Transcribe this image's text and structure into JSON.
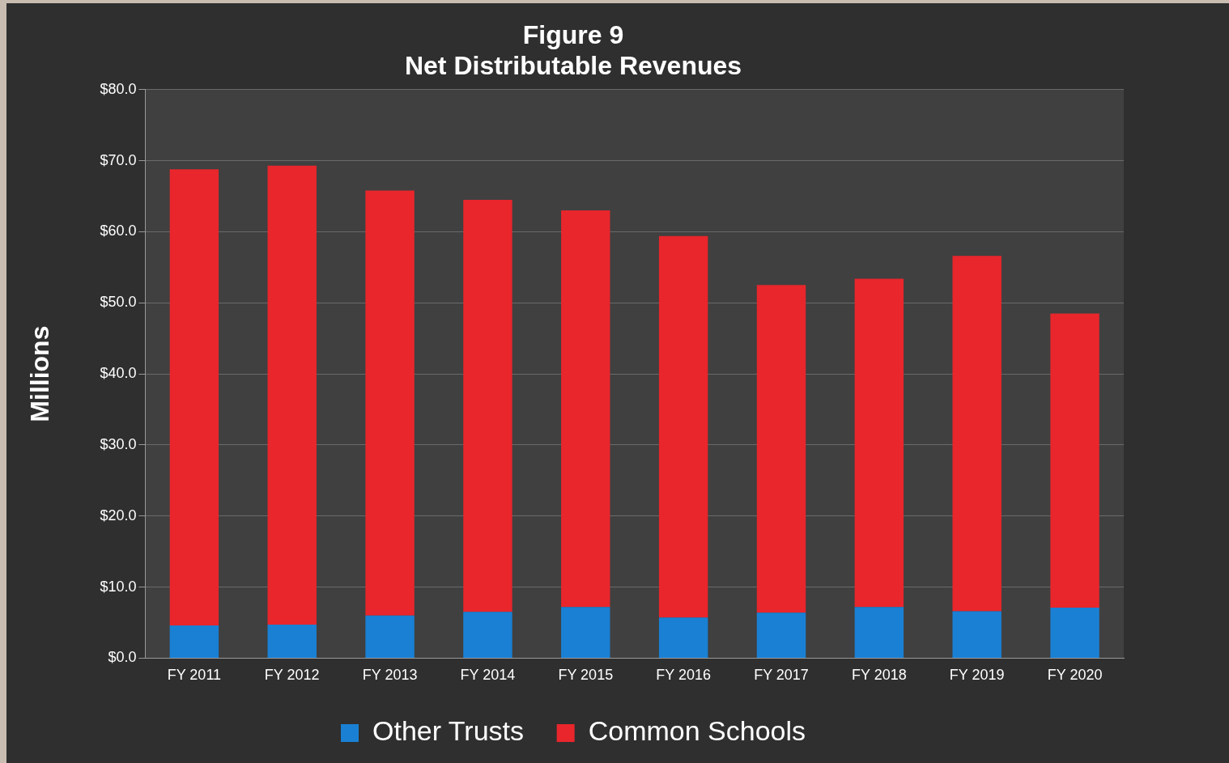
{
  "chart_data": {
    "type": "bar",
    "title": "Figure 9",
    "subtitle": "Net Distributable Revenues",
    "ylabel": "Millions",
    "categories": [
      "FY 2011",
      "FY 2012",
      "FY 2013",
      "FY 2014",
      "FY 2015",
      "FY 2016",
      "FY 2017",
      "FY 2018",
      "FY 2019",
      "FY 2020"
    ],
    "series": [
      {
        "name": "Other Trusts",
        "color": "#1a80d4",
        "values": [
          4.6,
          4.7,
          6.0,
          6.5,
          7.2,
          5.7,
          6.4,
          7.2,
          6.6,
          7.1
        ]
      },
      {
        "name": "Common Schools",
        "color": "#e8262c",
        "values": [
          64.2,
          64.6,
          59.8,
          58.0,
          55.8,
          53.7,
          46.1,
          46.2,
          50.0,
          41.4
        ]
      }
    ],
    "stacked": true,
    "ylim": [
      0,
      80
    ],
    "yticks": [
      {
        "value": 0,
        "label": "$0.0"
      },
      {
        "value": 10,
        "label": "$10.0"
      },
      {
        "value": 20,
        "label": "$20.0"
      },
      {
        "value": 30,
        "label": "$30.0"
      },
      {
        "value": 40,
        "label": "$40.0"
      },
      {
        "value": 50,
        "label": "$50.0"
      },
      {
        "value": 60,
        "label": "$60.0"
      },
      {
        "value": 70,
        "label": "$70.0"
      },
      {
        "value": 80,
        "label": "$80.0"
      }
    ],
    "grid": "y",
    "legend": "bottom"
  }
}
